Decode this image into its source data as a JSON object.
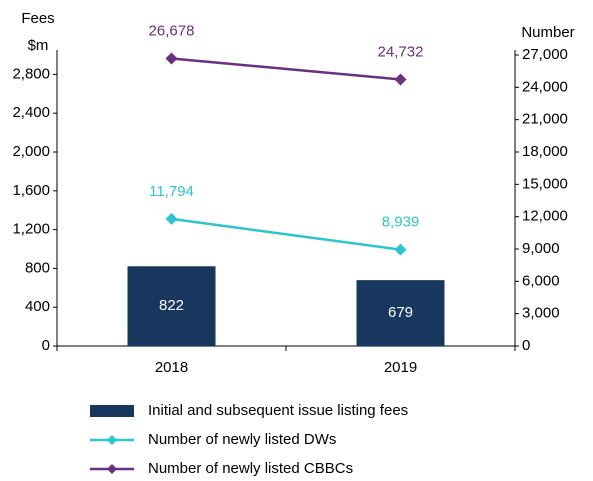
{
  "chart_data": {
    "type": "bar",
    "ylabel": [
      "Fees",
      "$m"
    ],
    "y2label": "Number",
    "categories": [
      "2018",
      "2019"
    ],
    "ylim": [
      0,
      3000
    ],
    "yticks": [
      0,
      400,
      800,
      {
        "value": 1200,
        "label": "1,200"
      },
      {
        "value": 1600,
        "label": "1,600"
      },
      {
        "value": 2000,
        "label": "2,000"
      },
      {
        "value": 2400,
        "label": "2,400"
      },
      {
        "value": 2800,
        "label": "2,800"
      }
    ],
    "y2lim": [
      0,
      27000
    ],
    "y2ticks": [
      0,
      {
        "value": 3000,
        "label": "3,000"
      },
      {
        "value": 6000,
        "label": "6,000"
      },
      {
        "value": 9000,
        "label": "9,000"
      },
      {
        "value": 12000,
        "label": "12,000"
      },
      {
        "value": 15000,
        "label": "15,000"
      },
      {
        "value": 18000,
        "label": "18,000"
      },
      {
        "value": 21000,
        "label": "21,000"
      },
      {
        "value": 24000,
        "label": "24,000"
      },
      {
        "value": 27000,
        "label": "27,000"
      }
    ],
    "series": [
      {
        "name": "Initial and subsequent issue listing fees",
        "type": "bar",
        "color": "#17375e",
        "values": [
          822,
          679
        ]
      },
      {
        "name": "Number of newly listed DWs",
        "type": "line",
        "axis": "y2",
        "color": "#2ec4cc",
        "values": [
          11794,
          8939
        ],
        "value_labels": [
          "11,794",
          "8,939"
        ]
      },
      {
        "name": "Number of newly listed CBBCs",
        "type": "line",
        "axis": "y2",
        "color": "#6a2f7e",
        "values": [
          26678,
          24732
        ],
        "value_labels": [
          "26,678",
          "24,732"
        ]
      }
    ]
  }
}
